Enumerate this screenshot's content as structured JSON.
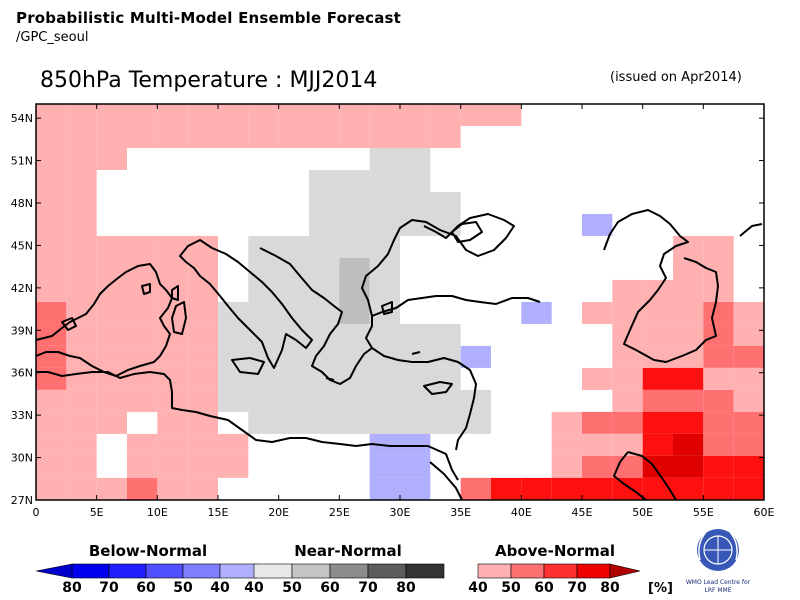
{
  "header": {
    "title": "Probabilistic Multi-Model Ensemble Forecast",
    "source": "/GPC_seoul",
    "map_title": "850hPa Temperature : MJJ2014",
    "issued": "(issued on Apr2014)"
  },
  "axes": {
    "lat_labels": [
      "54N",
      "51N",
      "48N",
      "45N",
      "42N",
      "39N",
      "36N",
      "33N",
      "30N",
      "27N"
    ],
    "lon_labels": [
      "0",
      "5E",
      "10E",
      "15E",
      "20E",
      "25E",
      "30E",
      "35E",
      "40E",
      "45E",
      "50E",
      "55E",
      "60E"
    ]
  },
  "colors": {
    "above": [
      "#ffb0b0",
      "#ff7070",
      "#ff1010",
      "#e00000",
      "#c00000"
    ],
    "near": [
      "#d9d9d9",
      "#bdbdbd",
      "#888888",
      "#5a5a5a",
      "#2e2e2e"
    ],
    "below": [
      "#b0b0ff",
      "#7777ff",
      "#2222ee",
      "#0000cc",
      "#00008a"
    ]
  },
  "legend": {
    "below_title": "Below-Normal",
    "near_title": "Near-Normal",
    "above_title": "Above-Normal",
    "below_labels": [
      "80",
      "70",
      "60",
      "50",
      "40"
    ],
    "near_labels": [
      "40",
      "50",
      "60",
      "70",
      "80"
    ],
    "above_labels": [
      "40",
      "50",
      "60",
      "70",
      "80"
    ],
    "unit": "[%]"
  },
  "logo": {
    "line1": "WMO Lead Centre for",
    "line2": "LRF MME"
  },
  "chart_data": {
    "type": "heatmap",
    "grid_origin": {
      "lon": 0,
      "lat": 55.0
    },
    "grid_step_deg": 2.5,
    "legend_codes": {
      "0": "none",
      "A1": "above 40-50%",
      "A2": "above 50-60%",
      "A3": "above 60-70%",
      "A4": "above 70-80%",
      "N1": "near 40-50%",
      "N2": "near 50-60%",
      "B1": "below 40-50%"
    },
    "rows": [
      [
        "A1",
        "A1",
        "A1",
        "A1",
        "A1",
        "A1",
        "A1",
        "A1",
        "A1",
        "A1",
        "A1",
        "A1",
        "A1",
        "A1",
        "A1",
        "A1",
        0,
        0,
        0,
        0,
        0,
        0,
        0,
        0
      ],
      [
        "A1",
        "A1",
        "A1",
        "A1",
        "A1",
        "A1",
        "A1",
        "A1",
        "A1",
        "A1",
        "A1",
        "A1",
        "A1",
        "A1",
        0,
        0,
        0,
        0,
        0,
        0,
        0,
        0,
        0,
        0
      ],
      [
        "A1",
        "A1",
        "A1",
        0,
        0,
        0,
        0,
        0,
        0,
        0,
        0,
        "N1",
        "N1",
        0,
        0,
        0,
        0,
        0,
        0,
        0,
        0,
        0,
        0,
        0
      ],
      [
        "A1",
        "A1",
        0,
        0,
        0,
        0,
        0,
        0,
        0,
        "N1",
        "N1",
        "N1",
        "N1",
        0,
        0,
        0,
        0,
        0,
        0,
        0,
        0,
        0,
        0,
        0
      ],
      [
        "A1",
        "A1",
        0,
        0,
        0,
        0,
        0,
        0,
        0,
        "N1",
        "N1",
        "N1",
        "N1",
        "N1",
        0,
        0,
        0,
        0,
        0,
        0,
        0,
        0,
        0,
        0
      ],
      [
        "A1",
        "A1",
        0,
        0,
        0,
        0,
        0,
        0,
        0,
        "N1",
        "N1",
        "N1",
        "N1",
        "N1",
        0,
        0,
        0,
        0,
        "B1",
        0,
        0,
        0,
        0,
        0
      ],
      [
        "A1",
        "A1",
        "A1",
        "A1",
        "A1",
        "A1",
        0,
        "N1",
        "N1",
        "N1",
        "N1",
        "N1",
        0,
        0,
        0,
        0,
        0,
        0,
        0,
        0,
        0,
        "A1",
        "A1",
        0
      ],
      [
        "A1",
        "A1",
        "A1",
        "A1",
        "A1",
        "A1",
        0,
        "N1",
        "N1",
        "N1",
        "N2",
        "N1",
        0,
        0,
        0,
        0,
        0,
        0,
        0,
        0,
        0,
        "A1",
        "A1",
        0
      ],
      [
        "A1",
        "A1",
        "A1",
        "A1",
        "A1",
        "A1",
        0,
        "N1",
        "N1",
        "N1",
        "N2",
        "N1",
        0,
        0,
        0,
        0,
        0,
        0,
        0,
        "A1",
        "A1",
        "A1",
        "A1",
        0
      ],
      [
        "A2",
        "A1",
        "A1",
        "A1",
        "A1",
        "A1",
        "N1",
        "N1",
        "N1",
        "N1",
        "N2",
        "N1",
        0,
        0,
        0,
        0,
        "B1",
        0,
        "A1",
        "A1",
        "A1",
        "A1",
        "A2",
        "A1"
      ],
      [
        "A2",
        "A1",
        "A1",
        "A1",
        "A1",
        "A1",
        "N1",
        "N1",
        "N1",
        "N1",
        "N1",
        "N1",
        "N1",
        "N1",
        0,
        0,
        0,
        0,
        0,
        "A1",
        "A1",
        "A1",
        "A2",
        "A1"
      ],
      [
        "A2",
        "A1",
        "A1",
        "A1",
        "A1",
        "A1",
        "N1",
        "N1",
        "N1",
        "N1",
        "N1",
        "N1",
        "N1",
        "N1",
        "B1",
        0,
        0,
        0,
        0,
        "A1",
        "A1",
        "A1",
        "A2",
        "A2"
      ],
      [
        "A2",
        "A1",
        "A1",
        "A1",
        "A1",
        "A1",
        "N1",
        "N1",
        "N1",
        "N1",
        "N1",
        "N1",
        "N1",
        "N1",
        0,
        0,
        0,
        0,
        0,
        0,
        "A1",
        "A1",
        "A1",
        "A1"
      ],
      [
        "A1",
        "A1",
        "A1",
        "A1",
        "A1",
        "A1",
        "N1",
        "N1",
        "N1",
        "N1",
        "N1",
        "N1",
        "N1",
        "N1",
        "N1",
        0,
        0,
        0,
        0,
        "A1",
        "A1",
        "A1",
        "A1",
        "A1"
      ],
      [
        "A1",
        "A1",
        "A1",
        0,
        "A1",
        "A1",
        0,
        "N1",
        "N1",
        "N1",
        "N1",
        "N1",
        "N1",
        "N1",
        "N1",
        0,
        0,
        0,
        0,
        "A1",
        "A2",
        "A2",
        "A2",
        "A2"
      ],
      [
        "A1",
        "A1",
        0,
        "A1",
        "A1",
        "A1",
        "A1",
        0,
        0,
        0,
        0,
        "B1",
        "B1",
        0,
        0,
        0,
        0,
        "A1",
        "A1",
        "A1",
        "A2",
        "A2",
        "A2",
        "A2"
      ],
      [
        "A1",
        "A1",
        0,
        "A1",
        "A1",
        "A1",
        "A1",
        0,
        0,
        0,
        0,
        "B1",
        "B1",
        0,
        0,
        0,
        0,
        "A1",
        "A2",
        "A2",
        "A2",
        "A2",
        "A2",
        "A2"
      ],
      [
        "A1",
        "A1",
        "A1",
        "A2",
        "A1",
        "A1",
        0,
        0,
        0,
        0,
        0,
        "B1",
        "B1",
        0,
        0,
        0,
        0,
        "A3",
        "A3",
        "A3",
        "A3",
        "A3",
        "A3",
        "A3"
      ]
    ],
    "overrides": [
      {
        "lat_index": 12,
        "lon_index": 18,
        "v": "A1"
      },
      {
        "lat_index": 12,
        "lon_index": 19,
        "v": "A1"
      },
      {
        "lat_index": 13,
        "lon_index": 20,
        "v": "A2"
      },
      {
        "lat_index": 13,
        "lon_index": 21,
        "v": "A2"
      },
      {
        "lat_index": 13,
        "lon_index": 22,
        "v": "A2"
      },
      {
        "lat_index": 13,
        "lon_index": 23,
        "v": "A1"
      },
      {
        "lat_index": 12,
        "lon_index": 20,
        "v": "A3"
      },
      {
        "lat_index": 12,
        "lon_index": 21,
        "v": "A3"
      },
      {
        "lat_index": 14,
        "lon_index": 17,
        "v": "A1"
      },
      {
        "lat_index": 14,
        "lon_index": 18,
        "v": "A2"
      },
      {
        "lat_index": 14,
        "lon_index": 19,
        "v": "A2"
      },
      {
        "lat_index": 14,
        "lon_index": 20,
        "v": "A3"
      },
      {
        "lat_index": 14,
        "lon_index": 21,
        "v": "A3"
      },
      {
        "lat_index": 15,
        "lon_index": 20,
        "v": "A3"
      },
      {
        "lat_index": 15,
        "lon_index": 21,
        "v": "A4"
      },
      {
        "lat_index": 16,
        "lon_index": 20,
        "v": "A4"
      },
      {
        "lat_index": 16,
        "lon_index": 21,
        "v": "A4"
      },
      {
        "lat_index": 16,
        "lon_index": 22,
        "v": "A3"
      },
      {
        "lat_index": 16,
        "lon_index": 23,
        "v": "A3"
      },
      {
        "lat_index": 17,
        "lon_index": 14,
        "v": "A2"
      },
      {
        "lat_index": 17,
        "lon_index": 15,
        "v": "A3"
      },
      {
        "lat_index": 17,
        "lon_index": 16,
        "v": "A3"
      }
    ],
    "xlabel": "",
    "ylabel": ""
  }
}
